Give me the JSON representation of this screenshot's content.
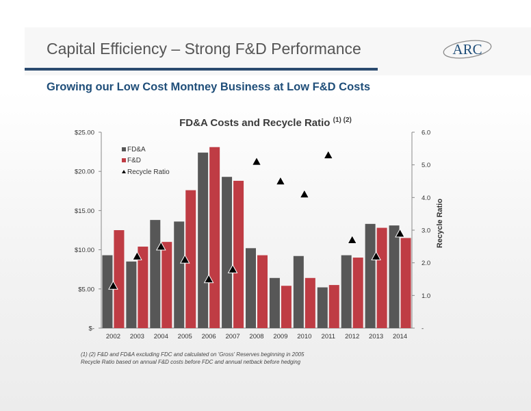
{
  "header": {
    "title": "Capital Efficiency – Strong F&D Performance",
    "logo_text": "ARC",
    "subtitle": "Growing our Low Cost Montney Business at Low F&D Costs"
  },
  "footnotes": {
    "line1": "(1) (2)  F&D and FD&A excluding FDC and calculated on 'Gross' Reserves beginning in 2005",
    "line2": "Recycle Ratio based on annual F&D costs before FDC and annual netback before hedging"
  },
  "colors": {
    "fda": "#575757",
    "fd": "#bf3c44",
    "title_blue": "#1f4e79",
    "rule": "#2b4a6f"
  },
  "chart_data": {
    "type": "bar",
    "title": "FD&A Costs and Recycle Ratio",
    "title_superscript": "(1) (2)",
    "categories": [
      "2002",
      "2003",
      "2004",
      "2005",
      "2006",
      "2007",
      "2008",
      "2009",
      "2010",
      "2011",
      "2012",
      "2013",
      "2014"
    ],
    "series": [
      {
        "name": "FD&A",
        "kind": "bar",
        "axis": "left",
        "values": [
          9.3,
          8.5,
          13.8,
          13.6,
          22.4,
          19.3,
          10.2,
          6.4,
          9.2,
          5.2,
          9.3,
          13.3,
          13.1
        ]
      },
      {
        "name": "F&D",
        "kind": "bar",
        "axis": "left",
        "values": [
          12.5,
          10.4,
          11.0,
          17.6,
          23.1,
          18.8,
          9.3,
          5.4,
          6.4,
          5.5,
          9.0,
          12.8,
          11.5
        ]
      },
      {
        "name": "Recycle Ratio",
        "kind": "marker",
        "marker": "triangle",
        "axis": "right",
        "values": [
          1.3,
          2.2,
          2.5,
          2.1,
          1.5,
          1.8,
          5.1,
          4.5,
          4.1,
          5.3,
          2.7,
          2.2,
          2.9
        ]
      }
    ],
    "yleft": {
      "lim": [
        0,
        25
      ],
      "ticks": [
        "$-",
        "$5.00",
        "$10.00",
        "$15.00",
        "$20.00",
        "$25.00"
      ],
      "tick_values": [
        0,
        5,
        10,
        15,
        20,
        25
      ]
    },
    "yright": {
      "label": "Recycle Ratio",
      "lim": [
        0,
        6
      ],
      "ticks": [
        "-",
        "1.0",
        "2.0",
        "3.0",
        "4.0",
        "5.0",
        "6.0"
      ],
      "tick_values": [
        0,
        1,
        2,
        3,
        4,
        5,
        6
      ]
    },
    "legend": {
      "placement": "top-left",
      "entries": [
        "FD&A",
        "F&D",
        "Recycle Ratio"
      ]
    },
    "grid": false
  }
}
